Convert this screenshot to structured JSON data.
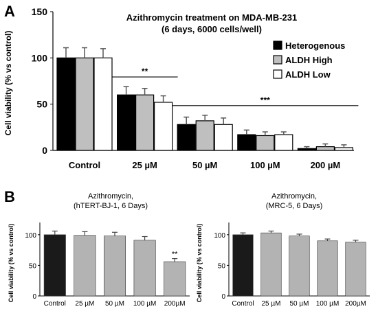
{
  "panels": {
    "a_letter": "A",
    "b_letter": "B"
  },
  "chart_data": [
    {
      "type": "bar",
      "title": "Azithromycin treatment on MDA-MB-231",
      "subtitle": "(6 days, 6000 cells/well)",
      "xlabel": "",
      "ylabel": "Cell viability (% vs control)",
      "ylim": [
        0,
        150
      ],
      "yticks": [
        0,
        50,
        100,
        150
      ],
      "grid": false,
      "legend_position": "right",
      "categories": [
        "Control",
        "25 µM",
        "50 µM",
        "100 µM",
        "200 µM"
      ],
      "series": [
        {
          "name": "Heterogenous",
          "color": "#000000",
          "values": [
            100,
            60,
            28,
            17,
            2
          ],
          "errors": [
            11,
            9,
            8,
            5,
            2
          ]
        },
        {
          "name": "ALDH High",
          "color": "#bfbfbf",
          "values": [
            100,
            60,
            32,
            16,
            4
          ],
          "errors": [
            11,
            7,
            6,
            4,
            3
          ]
        },
        {
          "name": "ALDH Low",
          "color": "#ffffff",
          "values": [
            100,
            52,
            28,
            17,
            3
          ],
          "errors": [
            10,
            7,
            7,
            3,
            3
          ]
        }
      ],
      "annotations": [
        {
          "text": "**",
          "from_category": 1,
          "to_category": 1
        },
        {
          "text": "***",
          "from_category": 2,
          "to_category": 4
        }
      ]
    },
    {
      "type": "bar",
      "title": "Azithromycin,",
      "subtitle": "(hTERT-BJ-1, 6 Days)",
      "xlabel": "",
      "ylabel": "Cell viability (% vs control)",
      "ylim": [
        0,
        120
      ],
      "yticks": [
        0,
        50,
        100
      ],
      "grid": false,
      "categories": [
        "Control",
        "25 µM",
        "50 µM",
        "100 µM",
        "200µM"
      ],
      "values": [
        100,
        99,
        98,
        91,
        56
      ],
      "errors": [
        6,
        6,
        6,
        6,
        5
      ],
      "colors": [
        "#1a1a1a",
        "#b3b3b3",
        "#b3b3b3",
        "#b3b3b3",
        "#b3b3b3"
      ],
      "annotations": [
        {
          "text": "**",
          "category": 4
        }
      ]
    },
    {
      "type": "bar",
      "title": "Azithromycin,",
      "subtitle": "(MRC-5, 6 Days)",
      "xlabel": "",
      "ylabel": "Cell viability (% vs control)",
      "ylim": [
        0,
        120
      ],
      "yticks": [
        0,
        50,
        100
      ],
      "grid": false,
      "categories": [
        "Control",
        "25 µM",
        "50 µM",
        "100 µM",
        "200µM"
      ],
      "values": [
        100,
        103,
        98,
        90,
        88
      ],
      "errors": [
        3,
        3,
        3,
        3,
        3
      ],
      "colors": [
        "#1a1a1a",
        "#b3b3b3",
        "#b3b3b3",
        "#b3b3b3",
        "#b3b3b3"
      ],
      "annotations": []
    }
  ]
}
